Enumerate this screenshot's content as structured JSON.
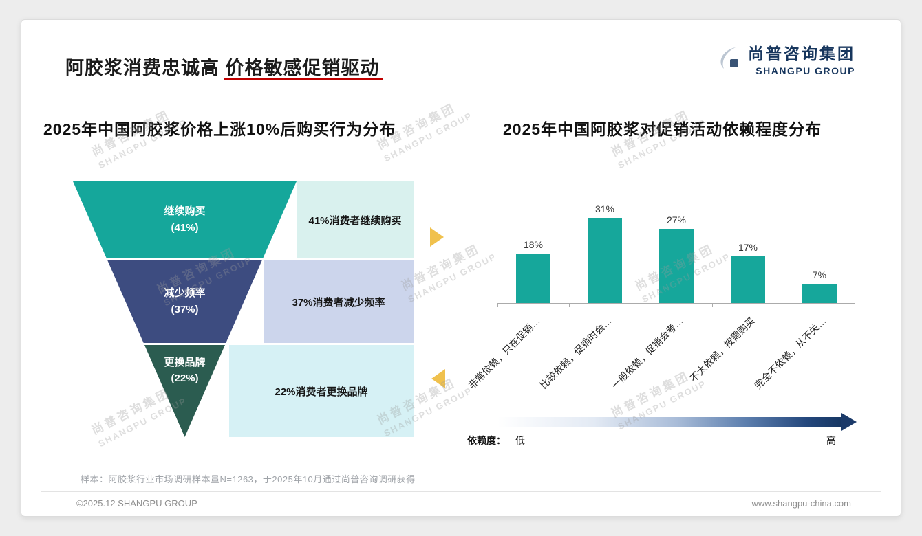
{
  "header": {
    "title": "阿胶浆消费忠诚高 价格敏感促销驱动",
    "logo_cn": "尚普咨询集团",
    "logo_en": "SHANGPU GROUP"
  },
  "watermark": {
    "line1": "尚普咨询集团",
    "line2": "SHANGPU GROUP"
  },
  "theme": {
    "accent_red": "#c00000",
    "brand_navy": "#17365d",
    "teal": "#16a79b",
    "funnel_navy": "#3d4c80",
    "funnel_green": "#2b5c50",
    "arrow_gold": "#f0c14d"
  },
  "chart_data": [
    {
      "type": "funnel",
      "title": "2025年中国阿胶浆价格上涨10%后购买行为分布",
      "categories": [
        "继续购买",
        "减少频率",
        "更换品牌"
      ],
      "pct_labels": [
        "(41%)",
        "(37%)",
        "(22%)"
      ],
      "values": [
        41,
        37,
        22
      ],
      "annotations": [
        "41%消费者继续购买",
        "37%消费者减少频率",
        "22%消费者更换品牌"
      ],
      "colors": [
        "#15a79b",
        "#3d4c80",
        "#2b5c50"
      ],
      "annotation_bg": [
        "#d9f1ee",
        "#ccd5ec",
        "#d6f1f5"
      ]
    },
    {
      "type": "bar",
      "title": "2025年中国阿胶浆对促销活动依赖程度分布",
      "categories": [
        "非常依赖，只在促销…",
        "比较依赖，促销时会…",
        "一般依赖，促销会考…",
        "不太依赖，按需购买",
        "完全不依赖，从不关…"
      ],
      "values": [
        18,
        31,
        27,
        17,
        7
      ],
      "value_labels": [
        "18%",
        "31%",
        "27%",
        "17%",
        "7%"
      ],
      "bar_color": "#16a79b",
      "ylim": [
        0,
        35
      ],
      "grid": false,
      "legend": {
        "label": "依赖度：",
        "low": "低",
        "high": "高"
      }
    }
  ],
  "footnote": "样本：阿胶浆行业市场调研样本量N=1263，于2025年10月通过尚普咨询调研获得",
  "footer": {
    "copyright": "©2025.12 SHANGPU GROUP",
    "website": "www.shangpu-china.com"
  }
}
